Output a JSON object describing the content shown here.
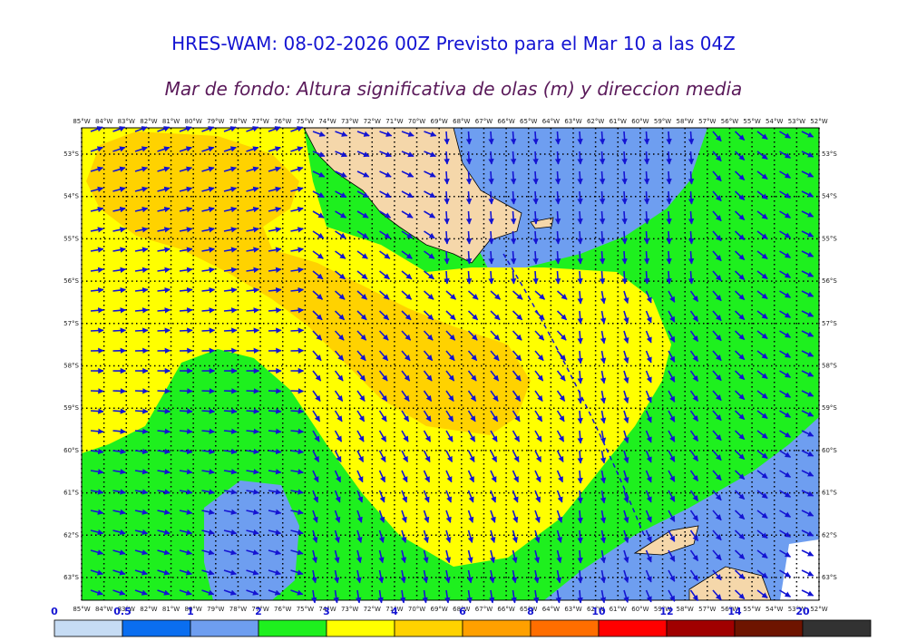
{
  "header": {
    "title": "HRES-WAM: 08-02-2026 00Z Previsto para el Mar 10 a las 04Z",
    "subtitle": "Mar de fondo: Altura significativa de olas (m) y direccion media"
  },
  "axes": {
    "longitudes": [
      "85°W",
      "84°W",
      "83°W",
      "82°W",
      "81°W",
      "80°W",
      "79°W",
      "78°W",
      "77°W",
      "76°W",
      "75°W",
      "74°W",
      "73°W",
      "72°W",
      "71°W",
      "70°W",
      "69°W",
      "68°W",
      "67°W",
      "66°W",
      "65°W",
      "64°W",
      "63°W",
      "62°W",
      "61°W",
      "60°W",
      "59°W",
      "58°W",
      "57°W",
      "56°W",
      "55°W",
      "54°W",
      "53°W",
      "52°W"
    ],
    "latitudes": [
      "53°S",
      "54°S",
      "55°S",
      "56°S",
      "57°S",
      "58°S",
      "59°S",
      "60°S",
      "61°S",
      "62°S",
      "63°S"
    ]
  },
  "scale": {
    "labels": [
      "0",
      "0.5",
      "1",
      "2",
      "3",
      "4",
      "6",
      "8",
      "10",
      "12",
      "14",
      "20"
    ],
    "colors": [
      "#c6dcf4",
      "#0a6ef0",
      "#6e9ef0",
      "#1ef01e",
      "#ffff00",
      "#ffd200",
      "#ffa000",
      "#ff6e00",
      "#ff0000",
      "#a00000",
      "#6e1400",
      "#323232"
    ]
  },
  "map_colors": {
    "land": "#f5d7aa",
    "blue_light": "#6e9ef0",
    "green": "#1ef01e",
    "yellow": "#ffff00",
    "orange": "#ffd200",
    "arrow": "#1414d2"
  }
}
